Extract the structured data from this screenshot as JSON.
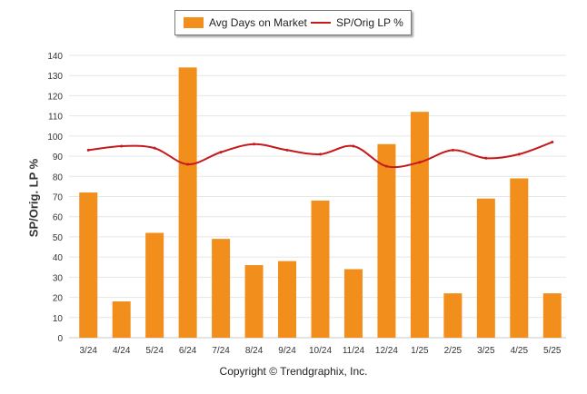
{
  "legend": {
    "bar_label": "Avg Days on Market",
    "line_label": "SP/Orig LP %"
  },
  "footer": {
    "copyright": "Copyright © Trendgraphix, Inc."
  },
  "colors": {
    "bar": "#f18e1c",
    "line": "#c41a1a",
    "grid": "#e6e6e6"
  },
  "chart_data": {
    "type": "bar",
    "categories": [
      "3/24",
      "4/24",
      "5/24",
      "6/24",
      "7/24",
      "8/24",
      "9/24",
      "10/24",
      "11/24",
      "12/24",
      "1/25",
      "2/25",
      "3/25",
      "4/25",
      "5/25"
    ],
    "series": [
      {
        "name": "Avg Days on Market",
        "type": "bar",
        "values": [
          72,
          18,
          52,
          134,
          49,
          36,
          38,
          68,
          34,
          96,
          112,
          22,
          69,
          79,
          22
        ]
      },
      {
        "name": "SP/Orig LP %",
        "type": "line",
        "values": [
          93,
          95,
          94,
          86,
          92,
          96,
          93,
          91,
          95,
          85,
          87,
          93,
          89,
          91,
          97
        ]
      }
    ],
    "ylabel": "SP/Orig. LP %",
    "ylim": [
      0,
      140
    ],
    "yticks": [
      0,
      10,
      20,
      30,
      40,
      50,
      60,
      70,
      80,
      90,
      100,
      110,
      120,
      130,
      140
    ],
    "grid": true,
    "legend_position": "top-center"
  }
}
